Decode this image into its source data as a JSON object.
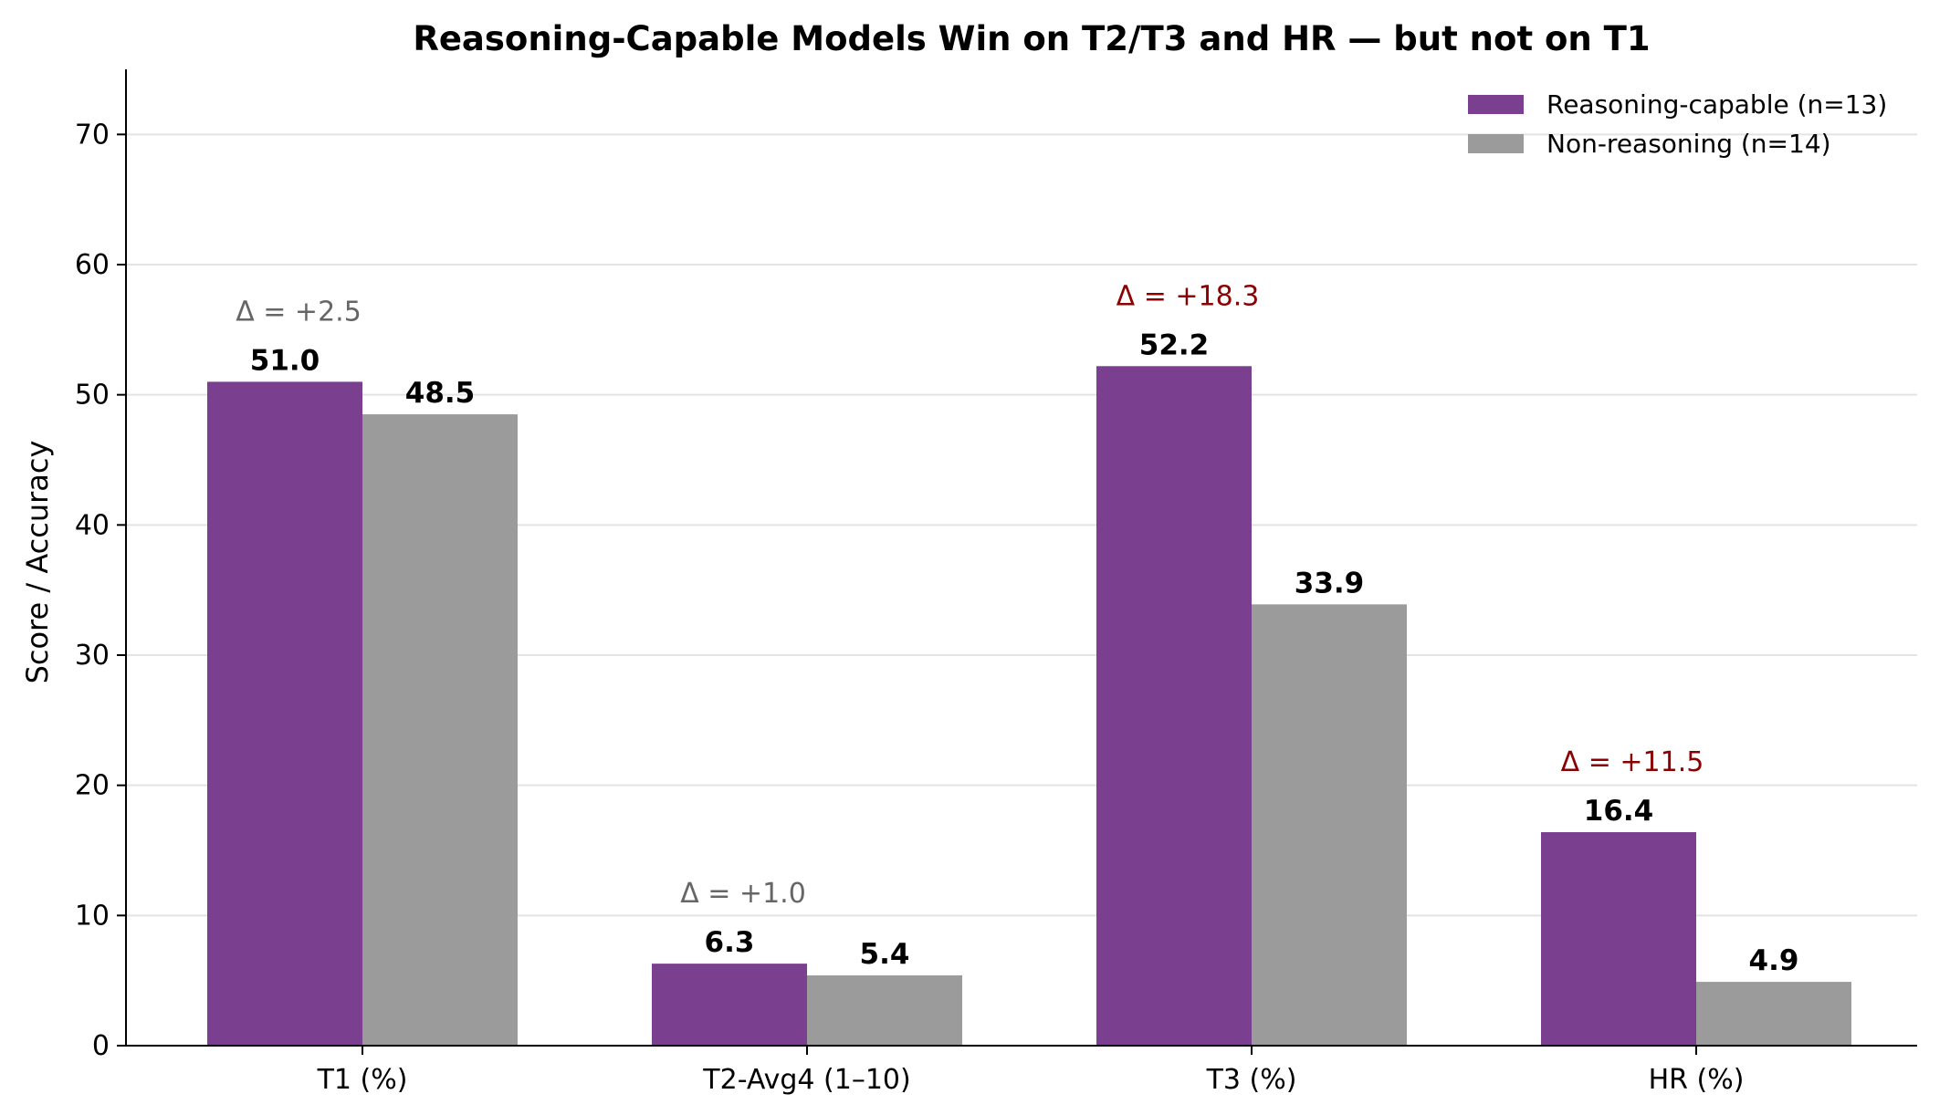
{
  "chart_data": {
    "type": "bar",
    "title": "Reasoning-Capable Models Win on T2/T3 and HR — but not on T1",
    "xlabel": "",
    "ylabel": "Score / Accuracy",
    "ylim": [
      0,
      75
    ],
    "yticks": [
      0,
      10,
      20,
      30,
      40,
      50,
      60,
      70
    ],
    "grid": "horizontal",
    "legend_position": "top-right",
    "categories": [
      "T1 (%)",
      "T2-Avg4 (1–10)",
      "T3 (%)",
      "HR (%)"
    ],
    "series": [
      {
        "name": "Reasoning-capable (n=13)",
        "color": "#7b3f8f",
        "values": [
          51.0,
          6.3,
          52.2,
          16.4
        ],
        "labels": [
          "51.0",
          "6.3",
          "52.2",
          "16.4"
        ]
      },
      {
        "name": "Non-reasoning (n=14)",
        "color": "#9b9b9b",
        "values": [
          48.5,
          5.4,
          33.9,
          4.9
        ],
        "labels": [
          "48.5",
          "5.4",
          "33.9",
          "4.9"
        ]
      }
    ],
    "annotations": [
      {
        "category": "T1 (%)",
        "text": "Δ = +2.5",
        "color": "#666666"
      },
      {
        "category": "T2-Avg4 (1–10)",
        "text": "Δ = +1.0",
        "color": "#666666"
      },
      {
        "category": "T3 (%)",
        "text": "Δ = +18.3",
        "color": "#8b0000"
      },
      {
        "category": "HR (%)",
        "text": "Δ = +11.5",
        "color": "#8b0000"
      }
    ]
  }
}
